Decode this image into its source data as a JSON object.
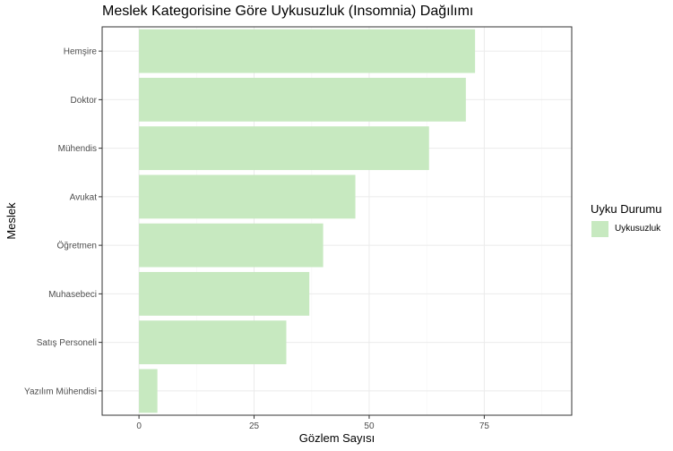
{
  "chart_data": {
    "type": "bar",
    "orientation": "horizontal",
    "title": "Meslek Kategorisine Göre Uykusuzluk (Insomnia) Dağılımı",
    "xlabel": "Gözlem Sayısı",
    "ylabel": "Meslek",
    "categories": [
      "Hemşire",
      "Doktor",
      "Mühendis",
      "Avukat",
      "Öğretmen",
      "Muhasebeci",
      "Satış Personeli",
      "Yazılım Mühendisi"
    ],
    "series": [
      {
        "name": "Uykusuzluk",
        "values": [
          73,
          71,
          63,
          47,
          40,
          37,
          32,
          4
        ]
      }
    ],
    "xlim": [
      -8,
      94
    ],
    "xticks": [
      0,
      25,
      50,
      75
    ],
    "grid": true,
    "legend": {
      "title": "Uyku Durumu",
      "position": "right"
    },
    "colors": {
      "bar": "#c7e9c0",
      "grid_major": "#ebebeb",
      "grid_minor": "#f5f5f5",
      "panel_border": "#333333"
    }
  }
}
